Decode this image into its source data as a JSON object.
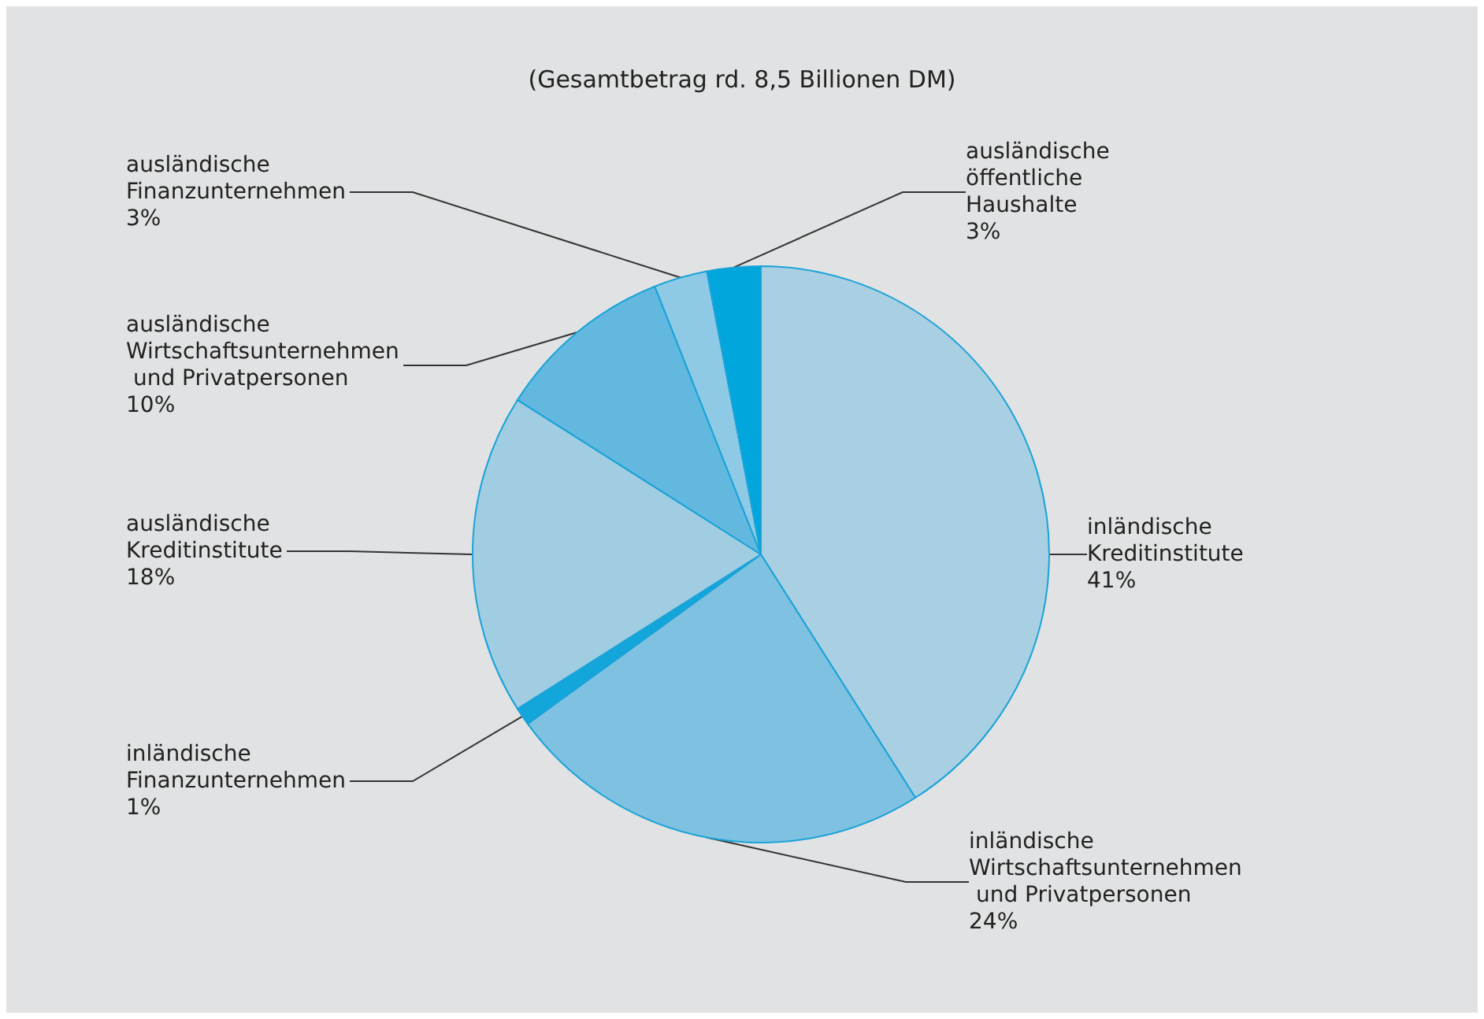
{
  "chart_data": {
    "type": "pie",
    "title": "(Gesamtbetrag rd. 8,5 Billionen DM)",
    "categories": [
      "inländische Kreditinstitute",
      "inländische Wirtschaftsunternehmen und Privatpersonen",
      "inländische Finanzunternehmen",
      "ausländische Kreditinstitute",
      "ausländische Wirtschaftsunternehmen und Privatpersonen",
      "ausländische Finanzunternehmen",
      "ausländische öffentliche Haushalte"
    ],
    "values": [
      41,
      24,
      1,
      18,
      10,
      3,
      3
    ],
    "value_labels": [
      "41%",
      "24%",
      "1%",
      "18%",
      "10%",
      "3%",
      "3%"
    ],
    "colors": [
      "#a9cfe2",
      "#7fc1e0",
      "#12a6db",
      "#a0cde2",
      "#62b8de",
      "#8ecae5",
      "#00a6dc"
    ]
  }
}
